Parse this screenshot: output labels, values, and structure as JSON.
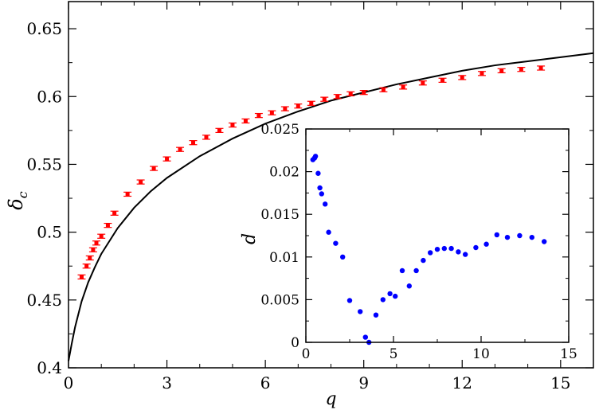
{
  "chart_data": [
    {
      "type": "scatter",
      "xlabel": "q",
      "ylabel": "δ",
      "ylabel_subscript": "c",
      "xlim": [
        0,
        16
      ],
      "ylim": [
        0.4,
        0.67
      ],
      "xticks": [
        0,
        3,
        6,
        9,
        12,
        15
      ],
      "xtick_labels": [
        "0",
        "3",
        "6",
        "9",
        "12",
        "15"
      ],
      "yticks": [
        0.4,
        0.45,
        0.5,
        0.55,
        0.6,
        0.65
      ],
      "ytick_labels": [
        "0.4",
        "0.45",
        "0.5",
        "0.55",
        "0.6",
        "0.65"
      ],
      "grid": false,
      "colors": {
        "points": "#ff0000",
        "curve": "#000000"
      },
      "series": [
        {
          "kind": "curve",
          "x": [
            0.0,
            0.1,
            0.2,
            0.4,
            0.6,
            0.8,
            1.0,
            1.5,
            2.0,
            2.5,
            3.0,
            4.0,
            5.0,
            6.0,
            7.0,
            8.0,
            9.0,
            10.0,
            11.0,
            12.0,
            13.0,
            14.0,
            15.0,
            16.0
          ],
          "y": [
            0.405,
            0.418,
            0.43,
            0.449,
            0.463,
            0.474,
            0.484,
            0.503,
            0.518,
            0.53,
            0.54,
            0.556,
            0.569,
            0.58,
            0.589,
            0.597,
            0.603,
            0.609,
            0.614,
            0.619,
            0.623,
            0.626,
            0.629,
            0.632
          ]
        },
        {
          "kind": "points_with_error_bars",
          "x": [
            0.4,
            0.55,
            0.65,
            0.75,
            0.85,
            1.0,
            1.2,
            1.4,
            1.8,
            2.2,
            2.6,
            3.0,
            3.4,
            3.8,
            4.2,
            4.6,
            5.0,
            5.4,
            5.8,
            6.2,
            6.6,
            7.0,
            7.4,
            7.8,
            8.2,
            8.6,
            9.0,
            9.6,
            10.2,
            10.8,
            11.4,
            12.0,
            12.6,
            13.2,
            13.8,
            14.4
          ],
          "y": [
            0.467,
            0.475,
            0.481,
            0.487,
            0.492,
            0.497,
            0.505,
            0.514,
            0.528,
            0.537,
            0.547,
            0.554,
            0.561,
            0.566,
            0.57,
            0.575,
            0.579,
            0.582,
            0.586,
            0.588,
            0.591,
            0.593,
            0.595,
            0.598,
            0.6,
            0.602,
            0.603,
            0.605,
            0.607,
            0.61,
            0.612,
            0.614,
            0.617,
            0.619,
            0.62,
            0.621
          ],
          "error": 0.0015
        }
      ]
    },
    {
      "type": "scatter",
      "xlabel": "q",
      "ylabel": "d",
      "xlim": [
        0,
        15
      ],
      "ylim": [
        0,
        0.025
      ],
      "xticks": [
        0,
        5,
        10,
        15
      ],
      "xtick_labels": [
        "0",
        "5",
        "10",
        "15"
      ],
      "yticks": [
        0,
        0.005,
        0.01,
        0.015,
        0.02,
        0.025
      ],
      "ytick_labels": [
        "0",
        "0.005",
        "0.01",
        "0.015",
        "0.02",
        "0.025"
      ],
      "grid": false,
      "colors": {
        "points": "#0000ff"
      },
      "series": [
        {
          "kind": "points",
          "x": [
            0.4,
            0.5,
            0.55,
            0.7,
            0.8,
            0.9,
            1.1,
            1.3,
            1.7,
            2.1,
            2.5,
            3.1,
            3.4,
            3.6,
            4.0,
            4.4,
            4.8,
            5.1,
            5.5,
            5.9,
            6.3,
            6.7,
            7.1,
            7.5,
            7.9,
            8.3,
            8.7,
            9.1,
            9.7,
            10.3,
            10.9,
            11.5,
            12.2,
            12.9,
            13.6
          ],
          "y": [
            0.0214,
            0.0216,
            0.0218,
            0.0198,
            0.0181,
            0.0174,
            0.0162,
            0.0129,
            0.0116,
            0.01,
            0.0049,
            0.0036,
            0.0006,
            0.0,
            0.0032,
            0.005,
            0.0057,
            0.0054,
            0.0084,
            0.0066,
            0.0084,
            0.0096,
            0.0105,
            0.0109,
            0.011,
            0.011,
            0.0106,
            0.0103,
            0.0111,
            0.0115,
            0.0126,
            0.0123,
            0.0125,
            0.0123,
            0.0118
          ]
        }
      ]
    }
  ]
}
